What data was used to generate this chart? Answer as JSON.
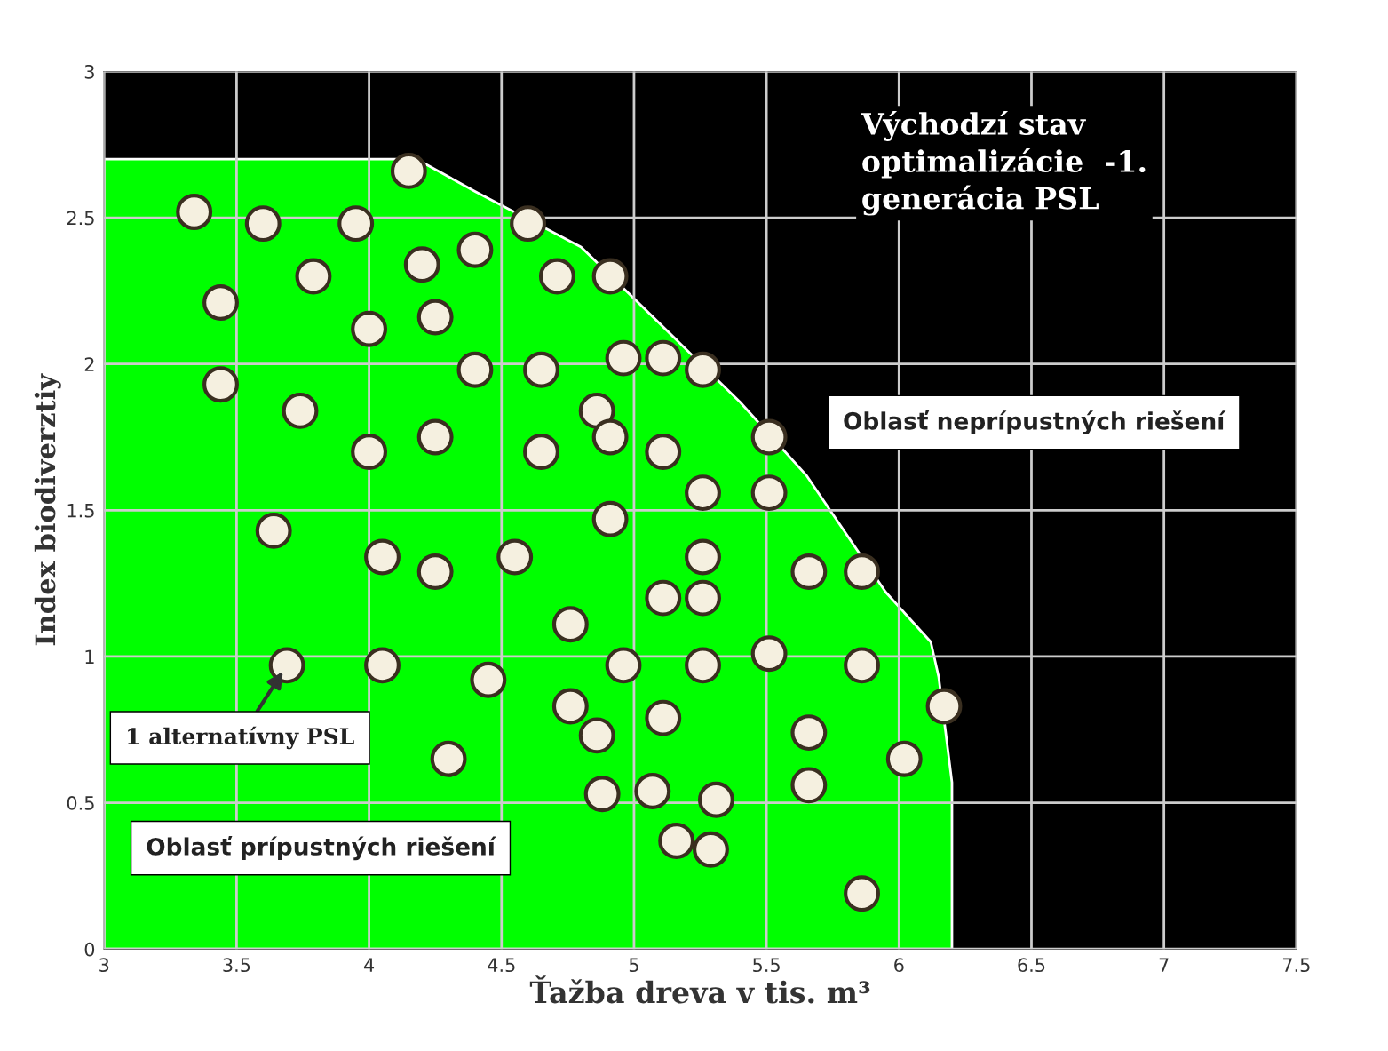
{
  "chart_data": {
    "type": "scatter",
    "title": "Východzí stav optimalizácie  -1. generácia PSL",
    "xlabel": "Ťažba dreva v tis. m³",
    "ylabel": "Index biodiverztiy",
    "xlim": [
      3,
      7.5
    ],
    "xticks": [
      3,
      3.5,
      4,
      4.5,
      5,
      5.5,
      6,
      6.5,
      7,
      7.5
    ],
    "ylim": [
      0,
      3
    ],
    "yticks": [
      0,
      0.5,
      1,
      1.5,
      2,
      2.5,
      3
    ],
    "grid": true,
    "legend": false,
    "annotations": [
      "Oblasť neprípustných riešení",
      "Oblasť prípustných riešení",
      {
        "text": "1 alternatívny PSL",
        "x": 3.69,
        "y": 0.97
      }
    ],
    "series": [
      {
        "type": "area",
        "color": "#00ff00",
        "x": [
          3.0,
          4.18,
          4.4,
          4.8,
          5.05,
          5.4,
          5.65,
          5.95,
          6.12,
          6.15,
          6.2,
          6.2
        ],
        "values": [
          2.7,
          2.7,
          2.59,
          2.4,
          2.18,
          1.87,
          1.62,
          1.22,
          1.05,
          0.93,
          0.57,
          0
        ]
      },
      {
        "color": "#3a2f20",
        "marker": "circle",
        "x": [
          3.34,
          3.6,
          3.95,
          4.15,
          4.6,
          3.44,
          3.79,
          4.2,
          4.4,
          4.71,
          4.91,
          4.0,
          4.25,
          3.44,
          4.4,
          4.65,
          4.96,
          5.11,
          5.26,
          3.74,
          4.0,
          4.25,
          4.65,
          4.86,
          4.91,
          5.11,
          5.51,
          5.26,
          5.51,
          4.91,
          3.64,
          4.05,
          4.25,
          4.55,
          5.26,
          5.66,
          5.86,
          5.11,
          5.26,
          4.76,
          3.69,
          4.05,
          4.45,
          4.96,
          5.26,
          5.51,
          5.86,
          6.17,
          4.76,
          5.11,
          4.86,
          5.66,
          4.3,
          6.02,
          4.88,
          5.07,
          5.31,
          5.66,
          5.16,
          5.29,
          5.86
        ],
        "values": [
          2.52,
          2.48,
          2.48,
          2.66,
          2.48,
          2.21,
          2.3,
          2.34,
          2.39,
          2.3,
          2.3,
          2.12,
          2.16,
          1.93,
          1.98,
          1.98,
          2.02,
          2.02,
          1.98,
          1.84,
          1.7,
          1.75,
          1.7,
          1.84,
          1.75,
          1.7,
          1.75,
          1.56,
          1.56,
          1.47,
          1.43,
          1.34,
          1.29,
          1.34,
          1.34,
          1.29,
          1.29,
          1.2,
          1.2,
          1.11,
          0.97,
          0.97,
          0.92,
          0.97,
          0.97,
          1.01,
          0.97,
          0.83,
          0.83,
          0.79,
          0.73,
          0.74,
          0.65,
          0.65,
          0.53,
          0.54,
          0.51,
          0.56,
          0.37,
          0.34,
          0.19
        ]
      }
    ]
  }
}
